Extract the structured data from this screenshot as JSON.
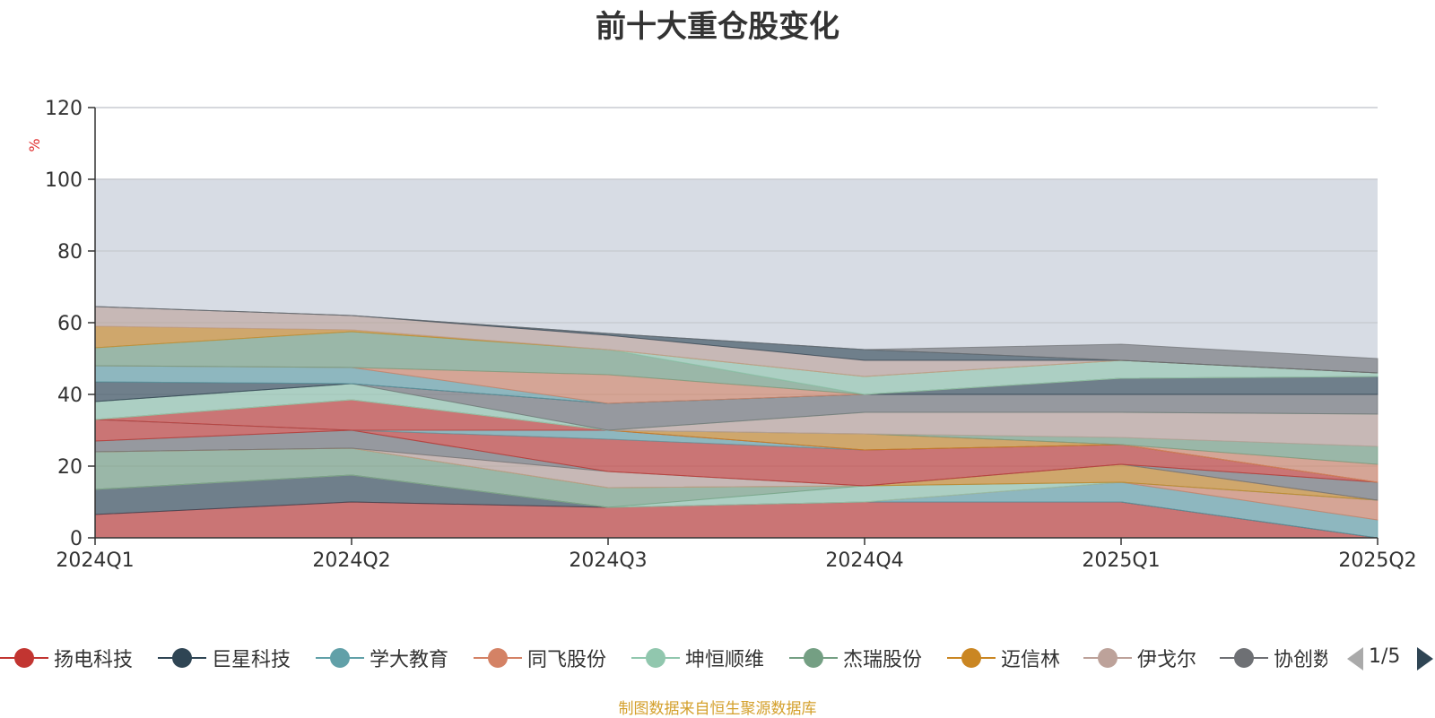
{
  "title": "前十大重仓股变化",
  "source": "制图数据来自恒生聚源数据库",
  "pager": {
    "text": "1/5"
  },
  "colors": {
    "background_band": "#d7dce4",
    "axis": "#333333",
    "grid": "#c8ccd2"
  },
  "chart_data": {
    "type": "area",
    "stacked": true,
    "categories": [
      "2024Q1",
      "2024Q2",
      "2024Q3",
      "2024Q4",
      "2025Q1",
      "2025Q2"
    ],
    "ylabel": "%",
    "ylim": [
      0,
      120
    ],
    "yticks": [
      0,
      20,
      40,
      60,
      80,
      100,
      120
    ],
    "background_band": [
      0,
      100
    ],
    "legend_position": "bottom",
    "series": [
      {
        "name": "扬电科技",
        "color": "#c23531",
        "values": [
          6.5,
          10,
          8.5,
          10,
          10,
          0
        ]
      },
      {
        "name": "巨星科技",
        "color": "#2f4554",
        "values": [
          7,
          7.5,
          0,
          0,
          0,
          0
        ]
      },
      {
        "name": "学大教育",
        "color": "#61a0a8",
        "values": [
          0,
          0,
          0,
          0,
          5.5,
          5
        ]
      },
      {
        "name": "同飞股份",
        "color": "#d48265",
        "values": [
          0,
          0,
          0,
          0,
          0,
          5.5
        ]
      },
      {
        "name": "坤恒顺维",
        "color": "#91c7ae",
        "values": [
          0,
          0,
          0,
          4.5,
          0,
          0
        ]
      },
      {
        "name": "杰瑞股份",
        "color": "#749f83",
        "values": [
          10.5,
          7.5,
          5.5,
          0,
          0,
          0
        ]
      },
      {
        "name": "迈信林",
        "color": "#ca8622",
        "values": [
          0,
          0,
          0,
          0,
          5,
          0
        ]
      },
      {
        "name": "伊戈尔",
        "color": "#bda29a",
        "values": [
          0,
          0,
          4.5,
          0,
          0,
          0
        ]
      },
      {
        "name": "协创数据",
        "color": "#6e7074",
        "values": [
          3,
          5,
          0,
          0,
          0,
          5
        ]
      },
      {
        "name": "",
        "color": "#c23531",
        "values": [
          6,
          0,
          9,
          10,
          5.5,
          0
        ]
      },
      {
        "name": "",
        "color": "#61a0a8",
        "values": [
          0,
          0,
          2.5,
          0,
          0,
          0
        ]
      },
      {
        "name": "",
        "color": "#c23531",
        "values": [
          0,
          8.5,
          0,
          0,
          0,
          0
        ]
      },
      {
        "name": "",
        "color": "#ca8622",
        "values": [
          0,
          0,
          0,
          4.5,
          0,
          0
        ]
      },
      {
        "name": "",
        "color": "#d48265",
        "values": [
          0,
          0,
          0,
          0,
          0,
          5
        ]
      },
      {
        "name": "",
        "color": "#749f83",
        "values": [
          0,
          0,
          0,
          0,
          2,
          5
        ]
      },
      {
        "name": "",
        "color": "#bda29a",
        "values": [
          0,
          0,
          0,
          6,
          7,
          9
        ]
      },
      {
        "name": "",
        "color": "#91c7ae",
        "values": [
          5,
          4.5,
          0,
          0,
          0,
          0
        ]
      },
      {
        "name": "",
        "color": "#6e7074",
        "values": [
          0,
          0,
          7.5,
          5,
          5,
          5.5
        ]
      },
      {
        "name": "",
        "color": "#2f4554",
        "values": [
          5.5,
          0,
          0,
          0,
          4.5,
          5
        ]
      },
      {
        "name": "",
        "color": "#61a0a8",
        "values": [
          4.5,
          4.5,
          0,
          0,
          0,
          0
        ]
      },
      {
        "name": "",
        "color": "#d48265",
        "values": [
          0,
          0,
          8,
          0,
          0,
          0
        ]
      },
      {
        "name": "",
        "color": "#749f83",
        "values": [
          5,
          10,
          7,
          0,
          0,
          0
        ]
      },
      {
        "name": "",
        "color": "#91c7ae",
        "values": [
          0,
          0,
          0,
          5,
          5,
          1
        ]
      },
      {
        "name": "",
        "color": "#ca8622",
        "values": [
          6,
          0.5,
          0,
          0,
          0,
          0
        ]
      },
      {
        "name": "",
        "color": "#bda29a",
        "values": [
          5.5,
          4,
          4,
          4.5,
          0,
          0
        ]
      },
      {
        "name": "",
        "color": "#2f4554",
        "values": [
          0,
          0,
          0.5,
          3,
          0,
          0
        ]
      },
      {
        "name": "",
        "color": "#6e7074",
        "values": [
          0,
          0,
          0,
          0,
          4.5,
          4
        ]
      }
    ]
  }
}
